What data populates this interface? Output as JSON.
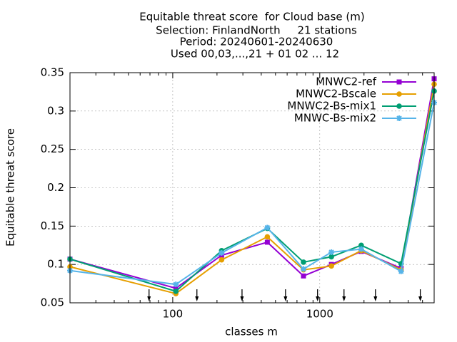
{
  "chart_data": {
    "type": "line",
    "title": [
      "Equitable threat score  for Cloud base (m)",
      "Selection: FinlandNorth     21 stations",
      "Period: 20240601-20240630",
      "Used 00,03,...,21 + 01 02 ... 12"
    ],
    "xlabel": "classes m",
    "ylabel": "Equitable threat score",
    "x": [
      20,
      105,
      215,
      440,
      775,
      1200,
      1915,
      3575,
      6000
    ],
    "series": [
      {
        "name": "MNWC2-ref",
        "color": "#9400d3",
        "values": [
          0.107,
          0.069,
          0.112,
          0.129,
          0.085,
          0.1,
          0.117,
          0.095,
          0.342
        ]
      },
      {
        "name": "MNWC2-Bscale",
        "color": "#e69f00",
        "values": [
          0.097,
          0.062,
          0.106,
          0.136,
          0.093,
          0.098,
          0.118,
          0.093,
          0.335
        ]
      },
      {
        "name": "MNWC2-Bs-mix1",
        "color": "#009e73",
        "values": [
          0.107,
          0.065,
          0.118,
          0.147,
          0.103,
          0.11,
          0.125,
          0.101,
          0.326
        ]
      },
      {
        "name": "MNWC-Bs-mix2",
        "color": "#56b4e9",
        "values": [
          0.092,
          0.074,
          0.115,
          0.148,
          0.094,
          0.116,
          0.12,
          0.091,
          0.311
        ]
      }
    ],
    "arrows_x": [
      69,
      146,
      296,
      585,
      966,
      1462,
      2393,
      4830
    ],
    "xlim": [
      20,
      6000
    ],
    "xticks": [
      100,
      1000
    ],
    "xscale": "log",
    "ylim": [
      0.05,
      0.35
    ],
    "yticks": [
      0.05,
      0.1,
      0.15,
      0.2,
      0.25,
      0.3,
      0.35
    ],
    "grid": true,
    "legend": "top-right"
  }
}
